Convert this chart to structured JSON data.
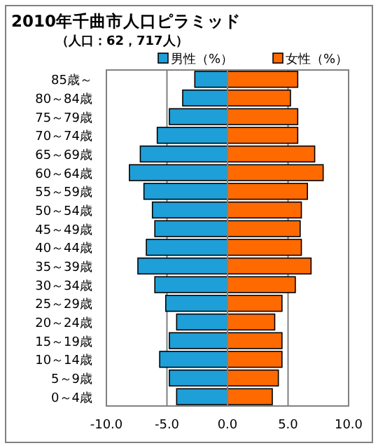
{
  "chart_data": {
    "type": "bar",
    "orientation": "horizontal",
    "stacked": true,
    "title": "2010年千曲市人口ピラミッド",
    "subtitle": "（人口：62，717人）",
    "categories": [
      "85歳～",
      "80～84歳",
      "75～79歳",
      "70～74歳",
      "65～69歳",
      "60～64歳",
      "55～59歳",
      "50～54歳",
      "45～49歳",
      "40～44歳",
      "35～39歳",
      "30～34歳",
      "25～29歳",
      "20～24歳",
      "15～19歳",
      "10～14歳",
      "5～9歳",
      "0～4歳"
    ],
    "series": [
      {
        "name": "男性（%）",
        "color": "#1e9fd8",
        "values": [
          -2.7,
          -3.7,
          -4.8,
          -5.8,
          -7.2,
          -8.1,
          -6.9,
          -6.2,
          -6.0,
          -6.7,
          -7.4,
          -6.0,
          -5.1,
          -4.2,
          -4.8,
          -5.6,
          -4.8,
          -4.2
        ]
      },
      {
        "name": "女性（%）",
        "color": "#ff6a00",
        "values": [
          5.8,
          5.2,
          5.8,
          5.8,
          7.2,
          7.9,
          6.6,
          6.1,
          6.0,
          6.1,
          6.9,
          5.6,
          4.5,
          3.9,
          4.5,
          4.5,
          4.2,
          3.7
        ]
      }
    ],
    "xlim": [
      -10,
      10
    ],
    "xticks": [
      {
        "value": -10,
        "label": "-10.0"
      },
      {
        "value": -5,
        "label": "-5.0"
      },
      {
        "value": 0,
        "label": "0.0"
      },
      {
        "value": 5,
        "label": "5.0"
      },
      {
        "value": 10,
        "label": "10.0"
      }
    ],
    "grid": "x",
    "legend": "top right"
  }
}
